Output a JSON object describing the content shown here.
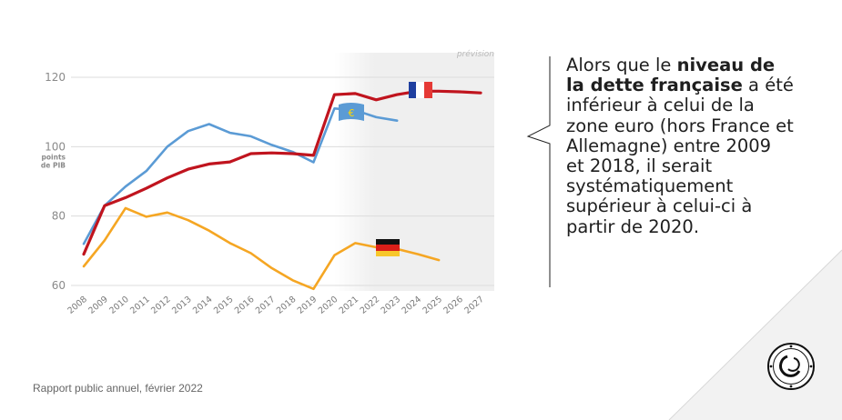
{
  "chart_data": {
    "type": "line",
    "x": [
      "2008",
      "2009",
      "2010",
      "2011",
      "2012",
      "2013",
      "2014",
      "2015",
      "2016",
      "2017",
      "2018",
      "2019",
      "2020",
      "2021",
      "2022",
      "2023",
      "2024",
      "2025",
      "2026",
      "2027"
    ],
    "ylim": [
      58,
      126
    ],
    "yticks": [
      60,
      80,
      100,
      120
    ],
    "ylabel": "points de PIB",
    "forecast_label": "prévision",
    "forecast_from": "2020",
    "grid": true,
    "series": [
      {
        "key": "zone_euro",
        "color": "#5b9bd5",
        "values": [
          72,
          83,
          88.5,
          93,
          100,
          104.5,
          106.5,
          104,
          103,
          100.5,
          98.5,
          95.5,
          111,
          110.5,
          108.5,
          107.5,
          null,
          null,
          null,
          null
        ]
      },
      {
        "key": "france",
        "color": "#c0141e",
        "values": [
          69,
          83,
          85.3,
          88,
          91,
          93.5,
          95,
          95.6,
          98,
          98.2,
          98,
          97.5,
          115,
          115.3,
          113.5,
          115,
          116,
          116,
          115.8,
          115.5
        ]
      },
      {
        "key": "allemagne",
        "color": "#f5a623",
        "values": [
          65.5,
          73,
          82.3,
          79.8,
          81,
          78.8,
          75.8,
          72.2,
          69.3,
          65,
          61.5,
          59,
          68.7,
          72.2,
          71,
          70.5,
          69,
          67.3,
          null,
          null
        ]
      }
    ]
  },
  "callout": {
    "part1": "Alors que le ",
    "bold": "niveau de la dette française",
    "part2": " a été inférieur à celui de la zone euro (hors France et Allemagne) entre 2009 et 2018, il serait systématiquement supérieur à celui-ci à partir de 2020."
  },
  "source": "Rapport public annuel, février 2022",
  "icons": [
    "euro-flag-icon",
    "france-flag-icon",
    "germany-flag-icon",
    "cour-des-comptes-logo-icon"
  ],
  "colors": {
    "forecast_bg": "#efefef",
    "grid": "#dcdcdc",
    "corner": "#f3f3f3"
  }
}
